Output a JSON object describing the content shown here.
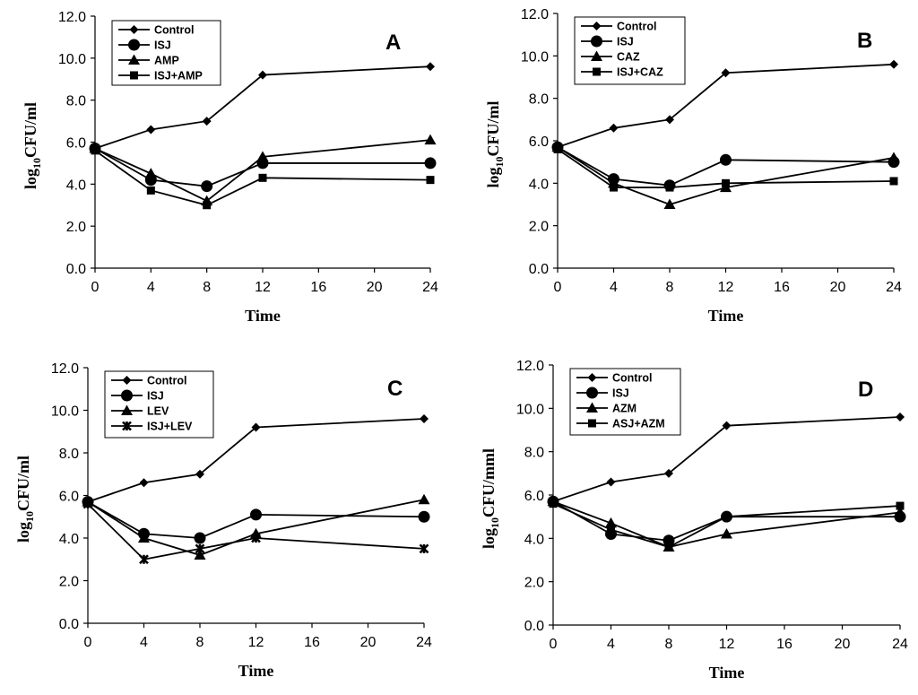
{
  "chart_data": [
    {
      "type": "line",
      "panel_label": "A",
      "xlabel": "Time",
      "ylabel": {
        "prefix": "log",
        "sub": "10",
        "suffix": "CFU/ml"
      },
      "x": [
        0,
        4,
        8,
        12,
        24
      ],
      "xticks": [
        0,
        4,
        8,
        12,
        16,
        20,
        24
      ],
      "xlim": [
        0,
        24
      ],
      "ylim": [
        0,
        12
      ],
      "yticks": [
        "0.0",
        "2.0",
        "4.0",
        "6.0",
        "8.0",
        "10.0",
        "12.0"
      ],
      "legend_position": "top-left",
      "series": [
        {
          "name": "Control",
          "marker": "diamond",
          "values": [
            5.7,
            6.6,
            7.0,
            9.2,
            9.6
          ]
        },
        {
          "name": "ISJ",
          "marker": "circle",
          "values": [
            5.7,
            4.2,
            3.9,
            5.0,
            5.0
          ]
        },
        {
          "name": "AMP",
          "marker": "triangle",
          "values": [
            5.7,
            4.5,
            3.2,
            5.3,
            6.1
          ]
        },
        {
          "name": "ISJ+AMP",
          "marker": "square",
          "values": [
            5.6,
            3.7,
            3.0,
            4.3,
            4.2
          ]
        }
      ]
    },
    {
      "type": "line",
      "panel_label": "B",
      "xlabel": "Time",
      "ylabel": {
        "prefix": "log",
        "sub": "10",
        "suffix": "CFU/ml"
      },
      "x": [
        0,
        4,
        8,
        12,
        24
      ],
      "xticks": [
        0,
        4,
        8,
        12,
        16,
        20,
        24
      ],
      "xlim": [
        0,
        24
      ],
      "ylim": [
        0,
        12
      ],
      "yticks": [
        "0.0",
        "2.0",
        "4.0",
        "6.0",
        "8.0",
        "10.0",
        "12.0"
      ],
      "legend_position": "top-left",
      "series": [
        {
          "name": "Control",
          "marker": "diamond",
          "values": [
            5.7,
            6.6,
            7.0,
            9.2,
            9.6
          ]
        },
        {
          "name": "ISJ",
          "marker": "circle",
          "values": [
            5.7,
            4.2,
            3.9,
            5.1,
            5.0
          ]
        },
        {
          "name": "CAZ",
          "marker": "triangle",
          "values": [
            5.7,
            4.0,
            3.0,
            3.8,
            5.2
          ]
        },
        {
          "name": "ISJ+CAZ",
          "marker": "square",
          "values": [
            5.6,
            3.8,
            3.8,
            4.0,
            4.1
          ]
        }
      ]
    },
    {
      "type": "line",
      "panel_label": "C",
      "xlabel": "Time",
      "ylabel": {
        "prefix": "log",
        "sub": "10",
        "suffix": "CFU/ml"
      },
      "x": [
        0,
        4,
        8,
        12,
        24
      ],
      "xticks": [
        0,
        4,
        8,
        12,
        16,
        20,
        24
      ],
      "xlim": [
        0,
        24
      ],
      "ylim": [
        0,
        12
      ],
      "yticks": [
        "0.0",
        "2.0",
        "4.0",
        "6.0",
        "8.0",
        "10.0",
        "12.0"
      ],
      "legend_position": "top-left",
      "series": [
        {
          "name": "Control",
          "marker": "diamond",
          "values": [
            5.7,
            6.6,
            7.0,
            9.2,
            9.6
          ]
        },
        {
          "name": "ISJ",
          "marker": "circle",
          "values": [
            5.7,
            4.2,
            4.0,
            5.1,
            5.0
          ]
        },
        {
          "name": "LEV",
          "marker": "triangle",
          "values": [
            5.7,
            4.0,
            3.2,
            4.2,
            5.8
          ]
        },
        {
          "name": "ISJ+LEV",
          "marker": "star",
          "values": [
            5.6,
            3.0,
            3.5,
            4.0,
            3.5
          ]
        }
      ]
    },
    {
      "type": "line",
      "panel_label": "D",
      "xlabel": "Time",
      "ylabel": {
        "prefix": "log",
        "sub": "10",
        "suffix": "CFU/mml"
      },
      "x": [
        0,
        4,
        8,
        12,
        24
      ],
      "xticks": [
        0,
        4,
        8,
        12,
        16,
        20,
        24
      ],
      "xlim": [
        0,
        24
      ],
      "ylim": [
        0,
        12
      ],
      "yticks": [
        "0.0",
        "2.0",
        "4.0",
        "6.0",
        "8.0",
        "10.0",
        "12.0"
      ],
      "legend_position": "top-left",
      "series": [
        {
          "name": "Control",
          "marker": "diamond",
          "values": [
            5.7,
            6.6,
            7.0,
            9.2,
            9.6
          ]
        },
        {
          "name": "ISJ",
          "marker": "circle",
          "values": [
            5.7,
            4.2,
            3.9,
            5.0,
            5.0
          ]
        },
        {
          "name": "AZM",
          "marker": "triangle",
          "values": [
            5.7,
            4.7,
            3.6,
            4.2,
            5.2
          ]
        },
        {
          "name": "ASJ+AZM",
          "marker": "square",
          "values": [
            5.6,
            4.4,
            3.6,
            5.0,
            5.5
          ]
        }
      ]
    }
  ]
}
